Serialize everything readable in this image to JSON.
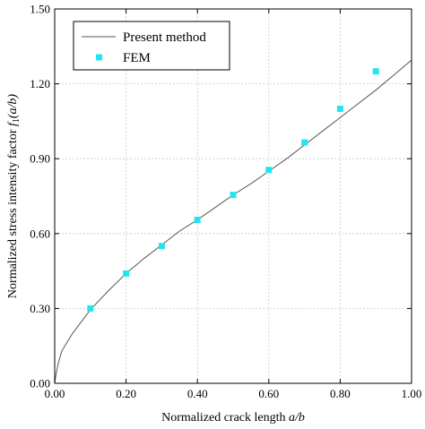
{
  "chart_data": {
    "type": "line",
    "xlabel_main": "Normalized crack length ",
    "xlabel_italic": "a/b",
    "ylabel_main": "Normalized stress intensity factor ",
    "ylabel_func": "f",
    "ylabel_sub": "1",
    "ylabel_arg": "(a/b)",
    "xlim": [
      0,
      1.0
    ],
    "ylim": [
      0,
      1.5
    ],
    "x_ticks": [
      0,
      0.2,
      0.4,
      0.6,
      0.8,
      1.0
    ],
    "x_tick_labels": [
      "0.00",
      "0.20",
      "0.40",
      "0.60",
      "0.80",
      "1.00"
    ],
    "y_ticks": [
      0,
      0.3,
      0.6,
      0.9,
      1.2,
      1.5
    ],
    "y_tick_labels": [
      "0.00",
      "0.30",
      "0.60",
      "0.90",
      "1.20",
      "1.50"
    ],
    "grid": true,
    "legend_position": "top-left",
    "series": [
      {
        "name": "Present method",
        "kind": "line",
        "color": "#555555",
        "x": [
          0,
          0.002,
          0.005,
          0.01,
          0.02,
          0.05,
          0.1,
          0.15,
          0.2,
          0.25,
          0.3,
          0.35,
          0.4,
          0.45,
          0.5,
          0.55,
          0.6,
          0.65,
          0.7,
          0.75,
          0.8,
          0.85,
          0.9,
          0.95,
          1.0
        ],
        "y": [
          0,
          0.02,
          0.045,
          0.08,
          0.13,
          0.2,
          0.295,
          0.37,
          0.44,
          0.5,
          0.555,
          0.61,
          0.655,
          0.705,
          0.755,
          0.8,
          0.85,
          0.9,
          0.955,
          1.01,
          1.065,
          1.12,
          1.175,
          1.235,
          1.295
        ]
      },
      {
        "name": "FEM",
        "kind": "scatter",
        "color": "#22e5f2",
        "x": [
          0.1,
          0.2,
          0.3,
          0.4,
          0.5,
          0.6,
          0.7,
          0.8,
          0.9
        ],
        "y": [
          0.3,
          0.44,
          0.55,
          0.655,
          0.755,
          0.855,
          0.965,
          1.1,
          1.25
        ]
      }
    ]
  }
}
